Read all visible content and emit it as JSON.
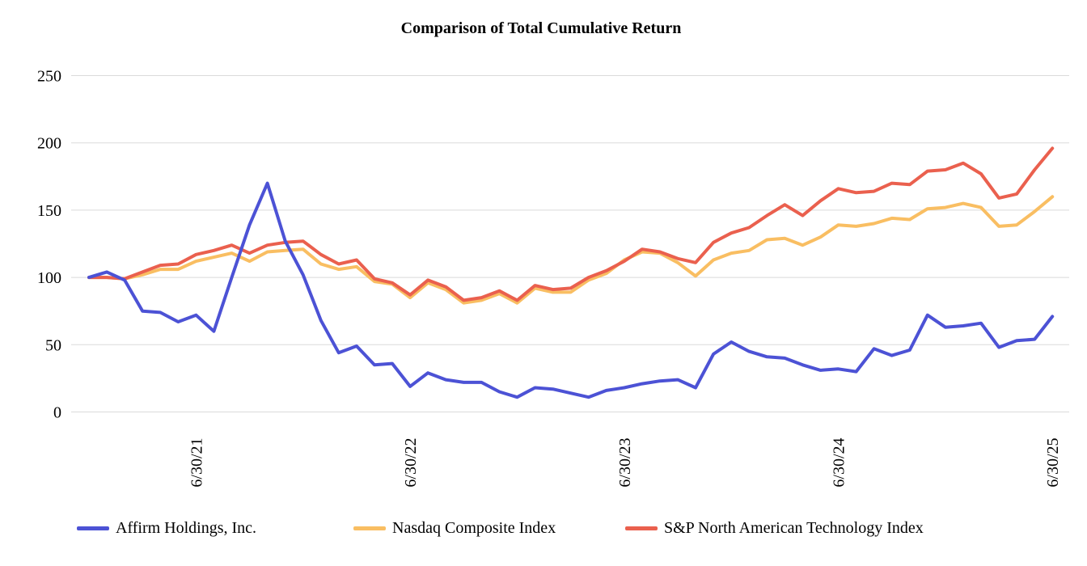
{
  "title": "Comparison of Total Cumulative Return",
  "chart_data": {
    "type": "line",
    "title": "Comparison of Total Cumulative Return",
    "xlabel": "",
    "ylabel": "",
    "y_ticks": [
      0,
      50,
      100,
      150,
      200,
      250
    ],
    "y_range": [
      0,
      250
    ],
    "grid": "horizontal",
    "legend_position": "bottom",
    "n_points": 55,
    "x_tick_labels": [
      "6/30/21",
      "6/30/22",
      "6/30/23",
      "6/30/24",
      "6/30/25"
    ],
    "x_tick_indices": [
      6,
      18,
      30,
      42,
      54
    ],
    "series": [
      {
        "name": "Affirm Holdings, Inc.",
        "color": "#4C52D5",
        "values": [
          100,
          104,
          98,
          75,
          74,
          67,
          72,
          60,
          100,
          139,
          170,
          127,
          102,
          68,
          44,
          49,
          35,
          36,
          19,
          29,
          24,
          22,
          22,
          15,
          11,
          18,
          17,
          14,
          11,
          16,
          18,
          21,
          23,
          24,
          18,
          43,
          52,
          45,
          41,
          40,
          35,
          31,
          32,
          30,
          47,
          42,
          46,
          72,
          63,
          64,
          66,
          48,
          53,
          54,
          71
        ]
      },
      {
        "name": "Nasdaq Composite Index",
        "color": "#F9BE62",
        "values": [
          100,
          100,
          99,
          102,
          106,
          106,
          112,
          115,
          118,
          112,
          119,
          120,
          121,
          110,
          106,
          108,
          97,
          95,
          85,
          96,
          91,
          81,
          83,
          88,
          81,
          92,
          89,
          89,
          98,
          103,
          113,
          119,
          118,
          111,
          101,
          113,
          118,
          120,
          128,
          129,
          124,
          130,
          139,
          138,
          140,
          144,
          143,
          151,
          152,
          155,
          152,
          138,
          139,
          149,
          160
        ]
      },
      {
        "name": "S&P North American Technology Index",
        "color": "#EA604E",
        "values": [
          100,
          100,
          99,
          104,
          109,
          110,
          117,
          120,
          124,
          118,
          124,
          126,
          127,
          117,
          110,
          113,
          99,
          96,
          87,
          98,
          93,
          83,
          85,
          90,
          83,
          94,
          91,
          92,
          100,
          105,
          112,
          121,
          119,
          114,
          111,
          126,
          133,
          137,
          146,
          154,
          146,
          157,
          166,
          163,
          164,
          170,
          169,
          179,
          180,
          185,
          177,
          159,
          162,
          180,
          196
        ]
      }
    ],
    "grid_color": "#DADADA"
  }
}
